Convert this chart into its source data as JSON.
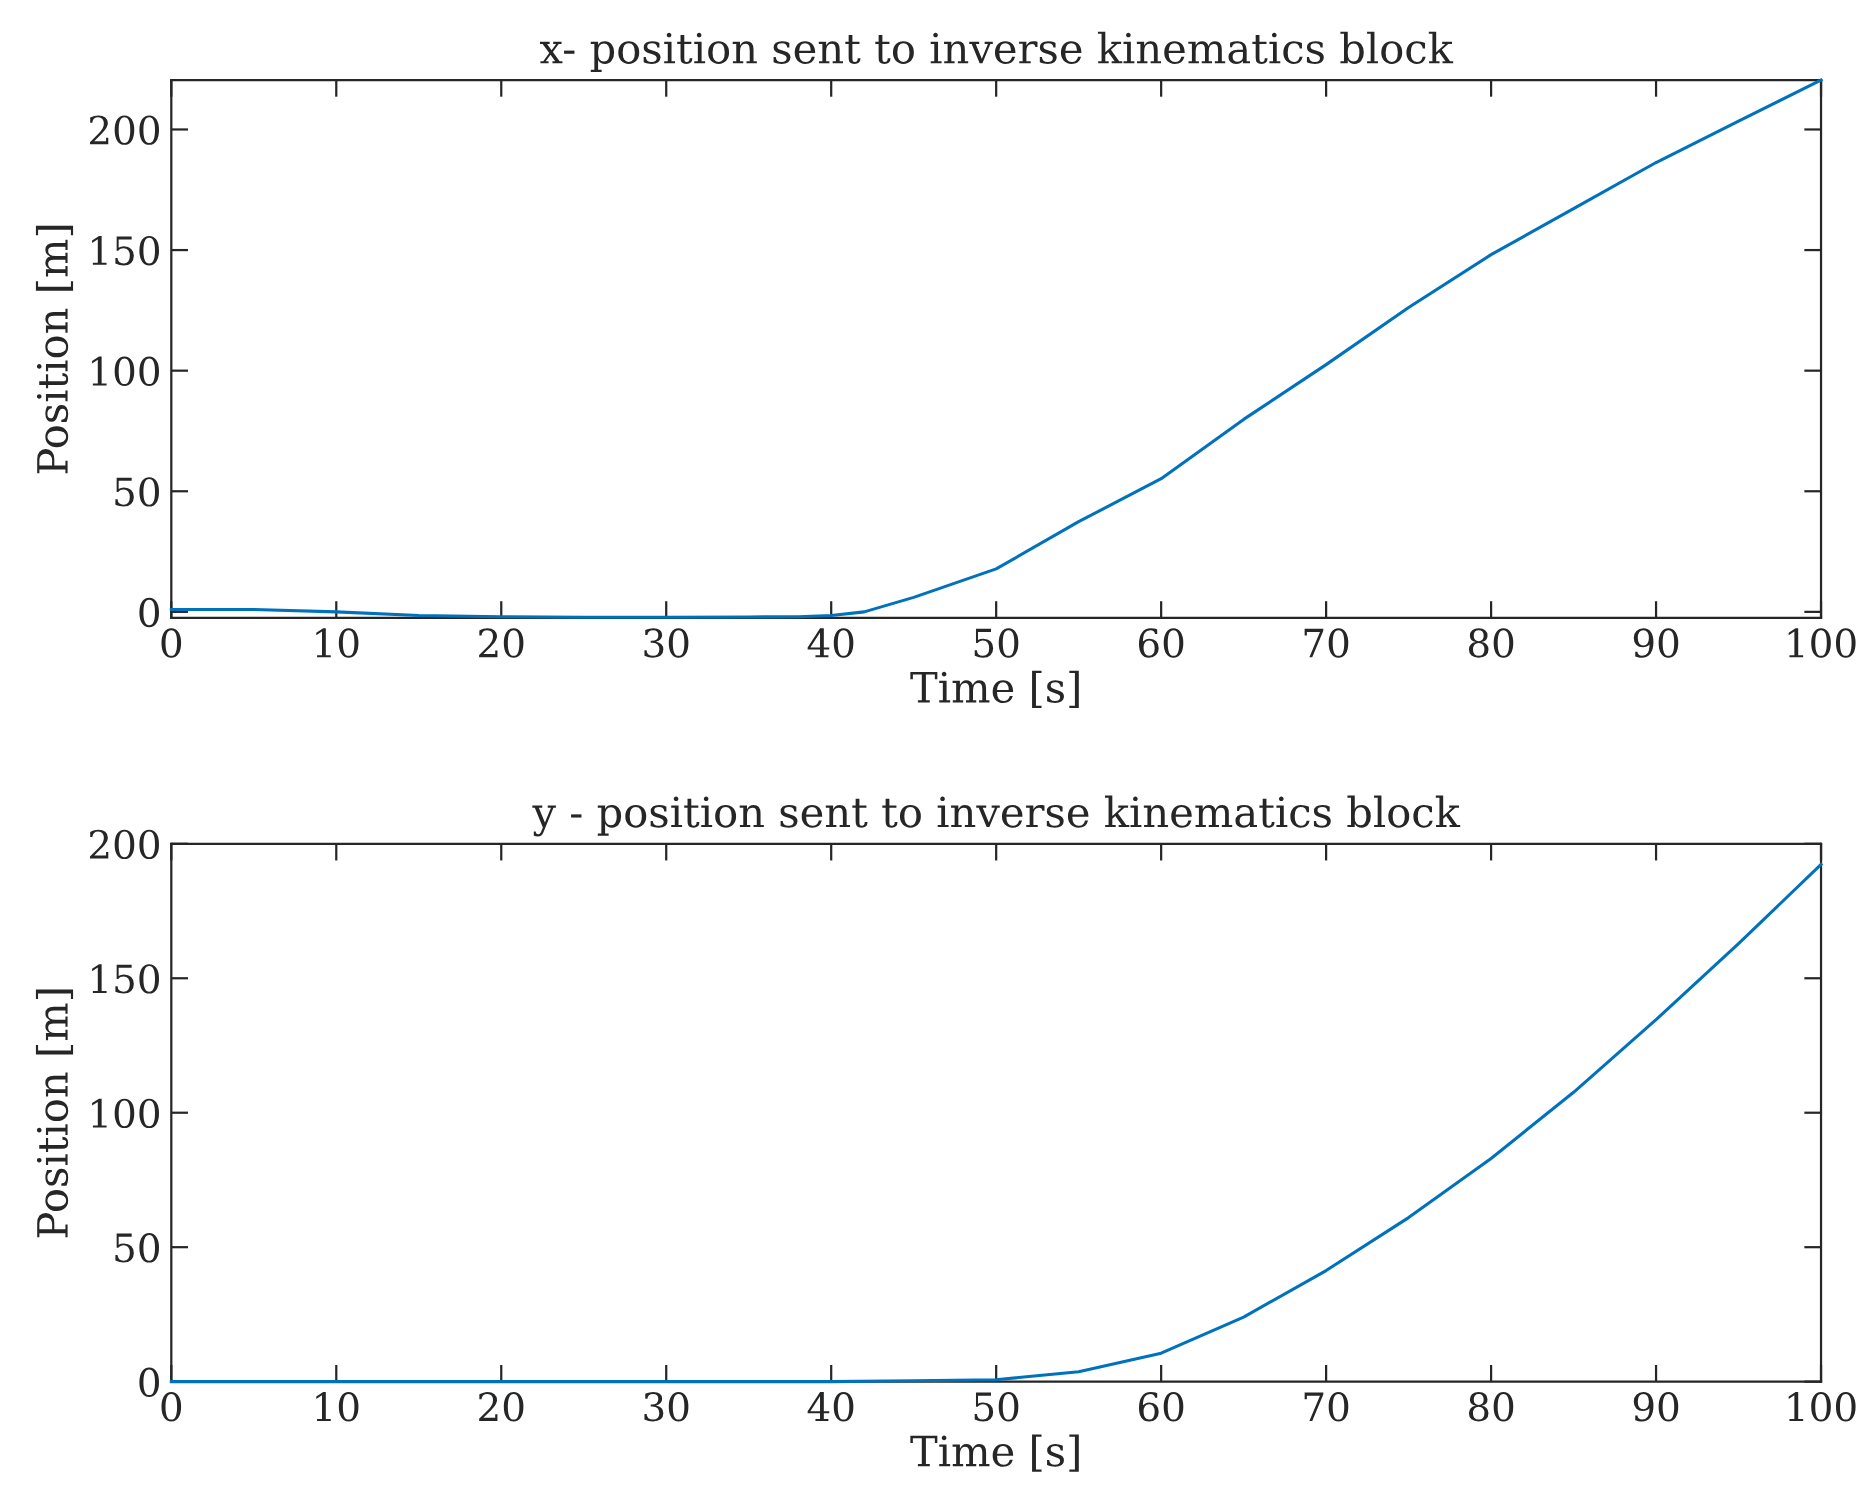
{
  "chart_data": [
    {
      "type": "line",
      "title": "x- position sent to inverse kinematics block",
      "xlabel": "Time [s]",
      "ylabel": "Position [m]",
      "xlim": [
        0,
        100
      ],
      "xticks": [
        0,
        10,
        20,
        30,
        40,
        50,
        60,
        70,
        80,
        90,
        100
      ],
      "ylim": [
        -2.5,
        220.5
      ],
      "yticks": [
        0,
        50,
        100,
        150,
        200
      ],
      "grid": false,
      "series": [
        {
          "color": "#0072bd",
          "x": [
            0,
            5,
            10,
            15,
            20,
            25,
            30,
            35,
            38,
            40,
            42,
            45,
            50,
            55,
            60,
            65,
            70,
            75,
            80,
            85,
            90,
            95,
            100
          ],
          "values": [
            1,
            1,
            0,
            -1.5,
            -2,
            -2.2,
            -2.2,
            -2.1,
            -2,
            -1.5,
            0,
            6,
            17.8,
            37.4,
            55.2,
            79.8,
            102.5,
            126.2,
            148.1,
            167.2,
            186.3,
            203.5,
            220.5
          ]
        }
      ]
    },
    {
      "type": "line",
      "title": "y - position sent to inverse kinematics block",
      "xlabel": "Time [s]",
      "ylabel": "Position [m]",
      "xlim": [
        0,
        100
      ],
      "xticks": [
        0,
        10,
        20,
        30,
        40,
        50,
        60,
        70,
        80,
        90,
        100
      ],
      "ylim": [
        0,
        200
      ],
      "yticks": [
        0,
        50,
        100,
        150,
        200
      ],
      "grid": false,
      "series": [
        {
          "color": "#0072bd",
          "x": [
            0,
            10,
            20,
            30,
            40,
            45,
            50,
            55,
            60,
            65,
            70,
            75,
            80,
            85,
            90,
            95,
            100
          ],
          "values": [
            0,
            0,
            0,
            0,
            0,
            0.3,
            0.7,
            3.7,
            10.6,
            24,
            41.3,
            61,
            83,
            107.6,
            134.6,
            162.9,
            192.3
          ]
        }
      ]
    }
  ]
}
